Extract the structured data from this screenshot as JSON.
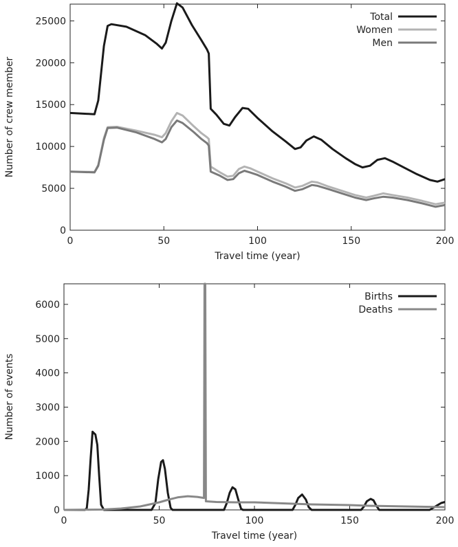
{
  "chart_data": [
    {
      "type": "line",
      "xlabel": "Travel time (year)",
      "ylabel": "Number of crew member",
      "xlim": [
        0,
        200
      ],
      "ylim": [
        0,
        27000
      ],
      "xticks": [
        0,
        50,
        100,
        150,
        200
      ],
      "yticks": [
        0,
        5000,
        10000,
        15000,
        20000,
        25000
      ],
      "legend_position": "top-right",
      "series": [
        {
          "name": "Total",
          "color": "#1a1a1a",
          "points": [
            [
              0,
              14000
            ],
            [
              13,
              13850
            ],
            [
              15,
              15500
            ],
            [
              18,
              22000
            ],
            [
              20,
              24400
            ],
            [
              22,
              24600
            ],
            [
              30,
              24300
            ],
            [
              40,
              23300
            ],
            [
              46,
              22300
            ],
            [
              49,
              21700
            ],
            [
              51,
              22400
            ],
            [
              54,
              25000
            ],
            [
              57,
              27100
            ],
            [
              60,
              26600
            ],
            [
              65,
              24500
            ],
            [
              70,
              22700
            ],
            [
              73,
              21600
            ],
            [
              74,
              21100
            ],
            [
              75,
              14500
            ],
            [
              78,
              13800
            ],
            [
              82,
              12700
            ],
            [
              85,
              12500
            ],
            [
              88,
              13500
            ],
            [
              92,
              14600
            ],
            [
              95,
              14500
            ],
            [
              100,
              13400
            ],
            [
              108,
              11800
            ],
            [
              115,
              10600
            ],
            [
              120,
              9700
            ],
            [
              123,
              9900
            ],
            [
              126,
              10700
            ],
            [
              130,
              11200
            ],
            [
              134,
              10800
            ],
            [
              140,
              9700
            ],
            [
              147,
              8600
            ],
            [
              152,
              7900
            ],
            [
              156,
              7500
            ],
            [
              160,
              7700
            ],
            [
              164,
              8400
            ],
            [
              168,
              8600
            ],
            [
              172,
              8200
            ],
            [
              178,
              7500
            ],
            [
              185,
              6700
            ],
            [
              192,
              6000
            ],
            [
              196,
              5800
            ],
            [
              200,
              6100
            ]
          ]
        },
        {
          "name": "Women",
          "color": "#b3b3b3",
          "points": [
            [
              0,
              7000
            ],
            [
              13,
              6950
            ],
            [
              15,
              7800
            ],
            [
              18,
              11000
            ],
            [
              20,
              12300
            ],
            [
              25,
              12350
            ],
            [
              35,
              11900
            ],
            [
              45,
              11400
            ],
            [
              49,
              11100
            ],
            [
              51,
              11600
            ],
            [
              54,
              13000
            ],
            [
              57,
              14000
            ],
            [
              60,
              13700
            ],
            [
              66,
              12400
            ],
            [
              70,
              11600
            ],
            [
              73,
              11100
            ],
            [
              74,
              10900
            ],
            [
              75,
              7600
            ],
            [
              80,
              6900
            ],
            [
              84,
              6400
            ],
            [
              87,
              6500
            ],
            [
              90,
              7300
            ],
            [
              93,
              7600
            ],
            [
              96,
              7400
            ],
            [
              100,
              7000
            ],
            [
              108,
              6200
            ],
            [
              115,
              5600
            ],
            [
              120,
              5100
            ],
            [
              124,
              5300
            ],
            [
              129,
              5800
            ],
            [
              132,
              5700
            ],
            [
              138,
              5200
            ],
            [
              145,
              4700
            ],
            [
              152,
              4200
            ],
            [
              158,
              3900
            ],
            [
              162,
              4100
            ],
            [
              167,
              4400
            ],
            [
              172,
              4200
            ],
            [
              180,
              3900
            ],
            [
              188,
              3500
            ],
            [
              195,
              3100
            ],
            [
              200,
              3300
            ]
          ]
        },
        {
          "name": "Men",
          "color": "#7a7a7a",
          "points": [
            [
              0,
              7000
            ],
            [
              13,
              6900
            ],
            [
              15,
              7700
            ],
            [
              18,
              10800
            ],
            [
              20,
              12200
            ],
            [
              25,
              12250
            ],
            [
              35,
              11700
            ],
            [
              45,
              10900
            ],
            [
              49,
              10500
            ],
            [
              51,
              10900
            ],
            [
              54,
              12300
            ],
            [
              57,
              13100
            ],
            [
              60,
              12800
            ],
            [
              66,
              11700
            ],
            [
              70,
              10900
            ],
            [
              73,
              10400
            ],
            [
              74,
              10100
            ],
            [
              75,
              7000
            ],
            [
              80,
              6500
            ],
            [
              84,
              6000
            ],
            [
              87,
              6100
            ],
            [
              90,
              6800
            ],
            [
              93,
              7100
            ],
            [
              96,
              6900
            ],
            [
              100,
              6600
            ],
            [
              108,
              5800
            ],
            [
              115,
              5200
            ],
            [
              120,
              4700
            ],
            [
              124,
              4900
            ],
            [
              129,
              5400
            ],
            [
              132,
              5300
            ],
            [
              138,
              4900
            ],
            [
              145,
              4400
            ],
            [
              152,
              3900
            ],
            [
              158,
              3600
            ],
            [
              162,
              3800
            ],
            [
              167,
              4000
            ],
            [
              172,
              3900
            ],
            [
              180,
              3600
            ],
            [
              188,
              3200
            ],
            [
              195,
              2800
            ],
            [
              200,
              3000
            ]
          ]
        }
      ]
    },
    {
      "type": "line",
      "xlabel": "Travel time (year)",
      "ylabel": "Number of events",
      "xlim": [
        0,
        200
      ],
      "ylim": [
        0,
        6600
      ],
      "xticks": [
        0,
        50,
        100,
        150,
        200
      ],
      "yticks": [
        0,
        1000,
        2000,
        3000,
        4000,
        5000,
        6000
      ],
      "legend_position": "top-right",
      "series": [
        {
          "name": "Births",
          "color": "#1a1a1a",
          "points": [
            [
              0,
              0
            ],
            [
              11,
              0
            ],
            [
              12,
              50
            ],
            [
              13,
              600
            ],
            [
              14,
              1500
            ],
            [
              15,
              2280
            ],
            [
              16.5,
              2200
            ],
            [
              17.5,
              1900
            ],
            [
              18.5,
              1000
            ],
            [
              19.5,
              150
            ],
            [
              21,
              0
            ],
            [
              46,
              0
            ],
            [
              48,
              200
            ],
            [
              49.5,
              900
            ],
            [
              51,
              1400
            ],
            [
              52,
              1450
            ],
            [
              53,
              1200
            ],
            [
              54.5,
              500
            ],
            [
              56,
              60
            ],
            [
              57,
              0
            ],
            [
              84,
              0
            ],
            [
              85.5,
              200
            ],
            [
              87,
              500
            ],
            [
              88.5,
              660
            ],
            [
              90,
              600
            ],
            [
              91.5,
              300
            ],
            [
              93,
              30
            ],
            [
              94,
              0
            ],
            [
              120,
              0
            ],
            [
              121.5,
              150
            ],
            [
              123,
              350
            ],
            [
              125,
              450
            ],
            [
              127,
              300
            ],
            [
              128.5,
              80
            ],
            [
              130,
              0
            ],
            [
              156,
              0
            ],
            [
              157.5,
              100
            ],
            [
              159,
              250
            ],
            [
              161,
              320
            ],
            [
              162.5,
              280
            ],
            [
              164,
              120
            ],
            [
              165.5,
              0
            ],
            [
              192,
              0
            ],
            [
              195,
              100
            ],
            [
              198,
              200
            ],
            [
              200,
              230
            ]
          ]
        },
        {
          "name": "Deaths",
          "color": "#888888",
          "points": [
            [
              0,
              0
            ],
            [
              20,
              10
            ],
            [
              30,
              40
            ],
            [
              40,
              100
            ],
            [
              50,
              220
            ],
            [
              55,
              300
            ],
            [
              60,
              370
            ],
            [
              65,
              400
            ],
            [
              70,
              380
            ],
            [
              73.5,
              350
            ],
            [
              73.8,
              6600
            ],
            [
              74.2,
              6600
            ],
            [
              74.5,
              250
            ],
            [
              80,
              230
            ],
            [
              90,
              220
            ],
            [
              100,
              220
            ],
            [
              110,
              200
            ],
            [
              120,
              180
            ],
            [
              130,
              160
            ],
            [
              140,
              150
            ],
            [
              150,
              140
            ],
            [
              160,
              120
            ],
            [
              170,
              110
            ],
            [
              180,
              100
            ],
            [
              190,
              90
            ],
            [
              200,
              80
            ]
          ]
        }
      ]
    }
  ]
}
